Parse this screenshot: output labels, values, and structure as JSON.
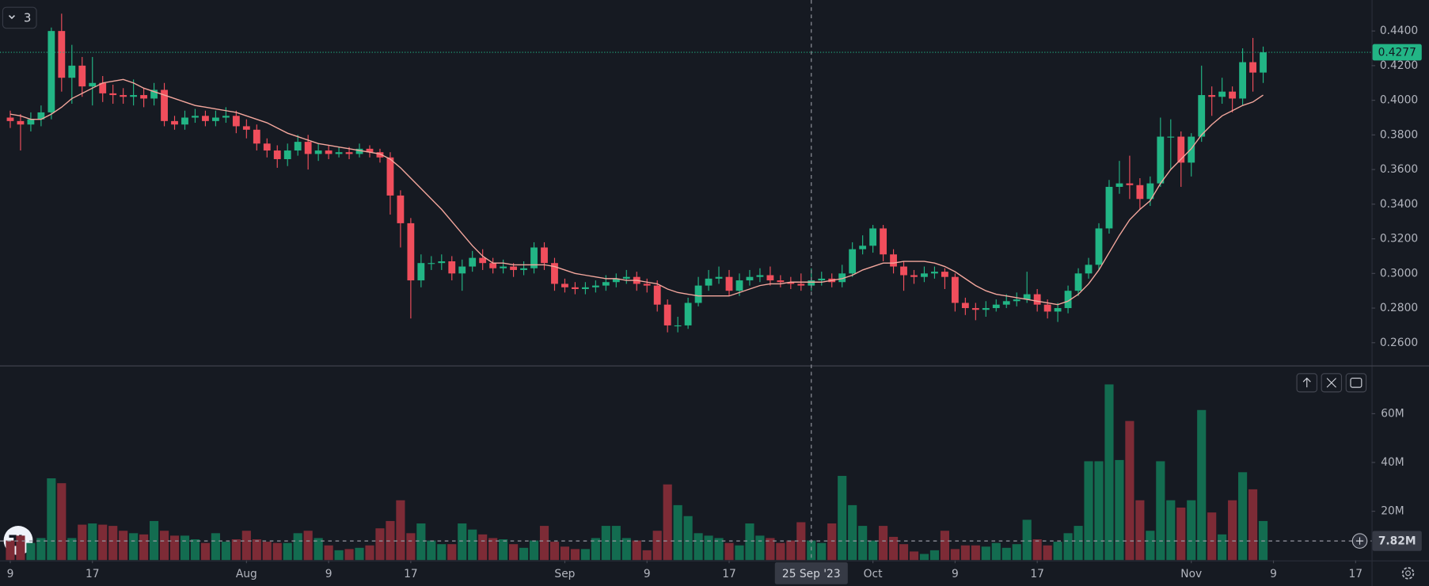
{
  "chart_data": [
    {
      "type": "candlestick",
      "x": [
        "2023-07-09",
        "2023-07-10",
        "2023-07-11",
        "2023-07-12",
        "2023-07-13",
        "2023-07-14",
        "2023-07-15",
        "2023-07-16",
        "2023-07-17",
        "2023-07-18",
        "2023-07-19",
        "2023-07-20",
        "2023-07-21",
        "2023-07-22",
        "2023-07-23",
        "2023-07-24",
        "2023-07-25",
        "2023-07-26",
        "2023-07-27",
        "2023-07-28",
        "2023-07-29",
        "2023-07-30",
        "2023-07-31",
        "2023-08-01",
        "2023-08-02",
        "2023-08-03",
        "2023-08-04",
        "2023-08-05",
        "2023-08-06",
        "2023-08-07",
        "2023-08-08",
        "2023-08-09",
        "2023-08-10",
        "2023-08-11",
        "2023-08-12",
        "2023-08-13",
        "2023-08-14",
        "2023-08-15",
        "2023-08-16",
        "2023-08-17",
        "2023-08-18",
        "2023-08-19",
        "2023-08-20",
        "2023-08-21",
        "2023-08-22",
        "2023-08-23",
        "2023-08-24",
        "2023-08-25",
        "2023-08-26",
        "2023-08-27",
        "2023-08-28",
        "2023-08-29",
        "2023-08-30",
        "2023-08-31",
        "2023-09-01",
        "2023-09-02",
        "2023-09-03",
        "2023-09-04",
        "2023-09-05",
        "2023-09-06",
        "2023-09-07",
        "2023-09-08",
        "2023-09-09",
        "2023-09-10",
        "2023-09-11",
        "2023-09-12",
        "2023-09-13",
        "2023-09-14",
        "2023-09-15",
        "2023-09-16",
        "2023-09-17",
        "2023-09-18",
        "2023-09-19",
        "2023-09-20",
        "2023-09-21",
        "2023-09-22",
        "2023-09-23",
        "2023-09-24",
        "2023-09-25",
        "2023-09-26",
        "2023-09-27",
        "2023-09-28",
        "2023-09-29",
        "2023-09-30",
        "2023-10-01",
        "2023-10-02",
        "2023-10-03",
        "2023-10-04",
        "2023-10-05",
        "2023-10-06",
        "2023-10-07",
        "2023-10-08",
        "2023-10-09",
        "2023-10-10",
        "2023-10-11",
        "2023-10-12",
        "2023-10-13",
        "2023-10-14",
        "2023-10-15",
        "2023-10-16",
        "2023-10-17",
        "2023-10-18",
        "2023-10-19",
        "2023-10-20",
        "2023-10-21",
        "2023-10-22",
        "2023-10-23",
        "2023-10-24",
        "2023-10-25",
        "2023-10-26",
        "2023-10-27",
        "2023-10-28",
        "2023-10-29",
        "2023-10-30",
        "2023-10-31",
        "2023-11-01",
        "2023-11-02",
        "2023-11-03",
        "2023-11-04",
        "2023-11-05",
        "2023-11-06",
        "2023-11-07",
        "2023-11-08"
      ],
      "open": [
        0.39,
        0.388,
        0.386,
        0.389,
        0.393,
        0.44,
        0.413,
        0.42,
        0.408,
        0.41,
        0.404,
        0.403,
        0.402,
        0.403,
        0.401,
        0.406,
        0.388,
        0.386,
        0.39,
        0.391,
        0.388,
        0.39,
        0.391,
        0.385,
        0.383,
        0.375,
        0.371,
        0.366,
        0.371,
        0.376,
        0.369,
        0.371,
        0.369,
        0.37,
        0.369,
        0.372,
        0.37,
        0.367,
        0.345,
        0.329,
        0.296,
        0.306,
        0.306,
        0.307,
        0.3,
        0.304,
        0.309,
        0.306,
        0.303,
        0.304,
        0.302,
        0.303,
        0.315,
        0.306,
        0.294,
        0.292,
        0.291,
        0.292,
        0.293,
        0.295,
        0.297,
        0.298,
        0.294,
        0.293,
        0.282,
        0.27,
        0.27,
        0.283,
        0.293,
        0.297,
        0.298,
        0.29,
        0.296,
        0.298,
        0.299,
        0.296,
        0.295,
        0.294,
        0.293,
        0.296,
        0.297,
        0.295,
        0.3,
        0.314,
        0.316,
        0.326,
        0.311,
        0.304,
        0.299,
        0.298,
        0.3,
        0.301,
        0.298,
        0.283,
        0.28,
        0.279,
        0.28,
        0.282,
        0.284,
        0.285,
        0.288,
        0.282,
        0.278,
        0.28,
        0.29,
        0.3,
        0.305,
        0.326,
        0.35,
        0.352,
        0.351,
        0.343,
        0.352,
        0.379,
        0.379,
        0.364,
        0.379,
        0.403,
        0.402,
        0.405,
        0.401,
        0.422,
        0.416
      ],
      "high": [
        0.394,
        0.392,
        0.393,
        0.397,
        0.442,
        0.45,
        0.432,
        0.425,
        0.425,
        0.414,
        0.409,
        0.407,
        0.412,
        0.407,
        0.41,
        0.41,
        0.391,
        0.394,
        0.395,
        0.394,
        0.394,
        0.396,
        0.394,
        0.389,
        0.386,
        0.378,
        0.374,
        0.375,
        0.38,
        0.38,
        0.375,
        0.374,
        0.373,
        0.373,
        0.375,
        0.374,
        0.372,
        0.37,
        0.348,
        0.332,
        0.311,
        0.31,
        0.311,
        0.31,
        0.308,
        0.313,
        0.314,
        0.309,
        0.308,
        0.306,
        0.307,
        0.318,
        0.318,
        0.309,
        0.297,
        0.295,
        0.295,
        0.296,
        0.299,
        0.3,
        0.302,
        0.301,
        0.297,
        0.296,
        0.285,
        0.275,
        0.286,
        0.298,
        0.302,
        0.304,
        0.302,
        0.3,
        0.302,
        0.303,
        0.304,
        0.299,
        0.298,
        0.3,
        0.303,
        0.301,
        0.3,
        0.305,
        0.318,
        0.322,
        0.328,
        0.328,
        0.314,
        0.307,
        0.302,
        0.304,
        0.304,
        0.303,
        0.3,
        0.286,
        0.283,
        0.284,
        0.285,
        0.288,
        0.289,
        0.301,
        0.291,
        0.285,
        0.283,
        0.293,
        0.303,
        0.309,
        0.329,
        0.354,
        0.365,
        0.368,
        0.355,
        0.356,
        0.39,
        0.389,
        0.382,
        0.381,
        0.42,
        0.408,
        0.413,
        0.408,
        0.43,
        0.436,
        0.431
      ],
      "low": [
        0.384,
        0.371,
        0.382,
        0.385,
        0.389,
        0.405,
        0.398,
        0.402,
        0.397,
        0.399,
        0.398,
        0.398,
        0.397,
        0.396,
        0.397,
        0.385,
        0.383,
        0.383,
        0.387,
        0.385,
        0.385,
        0.387,
        0.381,
        0.378,
        0.371,
        0.367,
        0.361,
        0.362,
        0.368,
        0.36,
        0.365,
        0.366,
        0.367,
        0.366,
        0.367,
        0.367,
        0.364,
        0.334,
        0.315,
        0.274,
        0.292,
        0.302,
        0.302,
        0.296,
        0.29,
        0.301,
        0.302,
        0.3,
        0.3,
        0.298,
        0.299,
        0.3,
        0.302,
        0.29,
        0.289,
        0.288,
        0.288,
        0.289,
        0.29,
        0.292,
        0.294,
        0.29,
        0.289,
        0.278,
        0.266,
        0.266,
        0.268,
        0.281,
        0.29,
        0.294,
        0.287,
        0.287,
        0.293,
        0.295,
        0.293,
        0.292,
        0.291,
        0.29,
        0.29,
        0.293,
        0.292,
        0.292,
        0.298,
        0.311,
        0.312,
        0.307,
        0.3,
        0.29,
        0.294,
        0.295,
        0.297,
        0.291,
        0.278,
        0.276,
        0.273,
        0.275,
        0.278,
        0.28,
        0.281,
        0.283,
        0.278,
        0.274,
        0.272,
        0.277,
        0.287,
        0.297,
        0.302,
        0.323,
        0.346,
        0.343,
        0.337,
        0.339,
        0.35,
        0.36,
        0.35,
        0.356,
        0.376,
        0.391,
        0.398,
        0.393,
        0.397,
        0.405,
        0.41
      ],
      "close": [
        0.388,
        0.386,
        0.389,
        0.393,
        0.44,
        0.413,
        0.42,
        0.408,
        0.41,
        0.404,
        0.403,
        0.402,
        0.403,
        0.401,
        0.406,
        0.388,
        0.386,
        0.39,
        0.391,
        0.388,
        0.39,
        0.391,
        0.385,
        0.383,
        0.375,
        0.371,
        0.366,
        0.371,
        0.376,
        0.369,
        0.371,
        0.369,
        0.37,
        0.369,
        0.372,
        0.37,
        0.367,
        0.345,
        0.329,
        0.296,
        0.306,
        0.306,
        0.307,
        0.3,
        0.304,
        0.309,
        0.306,
        0.303,
        0.304,
        0.302,
        0.303,
        0.315,
        0.306,
        0.294,
        0.292,
        0.291,
        0.292,
        0.293,
        0.295,
        0.297,
        0.298,
        0.294,
        0.293,
        0.282,
        0.27,
        0.27,
        0.283,
        0.293,
        0.297,
        0.298,
        0.29,
        0.296,
        0.298,
        0.299,
        0.296,
        0.295,
        0.294,
        0.293,
        0.296,
        0.297,
        0.295,
        0.3,
        0.314,
        0.316,
        0.326,
        0.311,
        0.304,
        0.299,
        0.298,
        0.3,
        0.301,
        0.298,
        0.283,
        0.28,
        0.279,
        0.28,
        0.282,
        0.284,
        0.285,
        0.288,
        0.282,
        0.278,
        0.28,
        0.29,
        0.3,
        0.305,
        0.326,
        0.35,
        0.352,
        0.351,
        0.343,
        0.352,
        0.379,
        0.379,
        0.364,
        0.379,
        0.403,
        0.402,
        0.405,
        0.401,
        0.422,
        0.416,
        0.4277
      ],
      "overlay": {
        "color": "#f4a79d",
        "values": [
          0.392,
          0.391,
          0.389,
          0.389,
          0.392,
          0.396,
          0.401,
          0.404,
          0.407,
          0.41,
          0.411,
          0.412,
          0.41,
          0.407,
          0.405,
          0.403,
          0.401,
          0.399,
          0.397,
          0.396,
          0.395,
          0.394,
          0.393,
          0.391,
          0.389,
          0.387,
          0.384,
          0.381,
          0.379,
          0.377,
          0.375,
          0.374,
          0.373,
          0.372,
          0.371,
          0.37,
          0.369,
          0.366,
          0.361,
          0.355,
          0.349,
          0.343,
          0.337,
          0.33,
          0.323,
          0.316,
          0.31,
          0.306,
          0.306,
          0.305,
          0.305,
          0.305,
          0.305,
          0.304,
          0.302,
          0.3,
          0.299,
          0.298,
          0.297,
          0.297,
          0.296,
          0.296,
          0.295,
          0.294,
          0.291,
          0.289,
          0.288,
          0.287,
          0.287,
          0.287,
          0.287,
          0.289,
          0.291,
          0.293,
          0.294,
          0.294,
          0.295,
          0.295,
          0.295,
          0.295,
          0.296,
          0.297,
          0.299,
          0.302,
          0.304,
          0.306,
          0.306,
          0.307,
          0.307,
          0.307,
          0.306,
          0.304,
          0.301,
          0.297,
          0.293,
          0.29,
          0.288,
          0.287,
          0.286,
          0.285,
          0.284,
          0.283,
          0.282,
          0.284,
          0.288,
          0.294,
          0.302,
          0.312,
          0.322,
          0.331,
          0.337,
          0.342,
          0.352,
          0.36,
          0.366,
          0.372,
          0.38,
          0.386,
          0.391,
          0.394,
          0.397,
          0.399,
          0.403
        ]
      },
      "up_color": "#22b585",
      "down_color": "#f04e5c",
      "xlim": [
        "2023-07-08",
        "2023-11-19"
      ],
      "xticks": [
        {
          "value": "2023-07-09",
          "label": "9"
        },
        {
          "value": "2023-07-17",
          "label": "17"
        },
        {
          "value": "2023-08-01",
          "label": "Aug"
        },
        {
          "value": "2023-08-09",
          "label": "9"
        },
        {
          "value": "2023-08-17",
          "label": "17"
        },
        {
          "value": "2023-09-01",
          "label": "Sep"
        },
        {
          "value": "2023-09-09",
          "label": "9"
        },
        {
          "value": "2023-09-17",
          "label": "17"
        },
        {
          "value": "2023-10-01",
          "label": "Oct"
        },
        {
          "value": "2023-10-09",
          "label": "9"
        },
        {
          "value": "2023-10-17",
          "label": "17"
        },
        {
          "value": "2023-11-01",
          "label": "Nov"
        },
        {
          "value": "2023-11-09",
          "label": "9"
        },
        {
          "value": "2023-11-17",
          "label": "17"
        }
      ],
      "ylim": [
        0.2474,
        0.4579
      ],
      "yticks": [
        {
          "value": 0.26,
          "label": "0.2600"
        },
        {
          "value": 0.28,
          "label": "0.2800"
        },
        {
          "value": 0.3,
          "label": "0.3000"
        },
        {
          "value": 0.32,
          "label": "0.3200"
        },
        {
          "value": 0.34,
          "label": "0.3400"
        },
        {
          "value": 0.36,
          "label": "0.3600"
        },
        {
          "value": 0.38,
          "label": "0.3800"
        },
        {
          "value": 0.4,
          "label": "0.4000"
        },
        {
          "value": 0.42,
          "label": "0.4200"
        },
        {
          "value": 0.44,
          "label": "0.4400"
        }
      ],
      "grid": false
    },
    {
      "type": "bar",
      "values": [
        8,
        10,
        7,
        9,
        33.5,
        31.5,
        9,
        14.5,
        15,
        14.5,
        14,
        12,
        11,
        10.5,
        16,
        12,
        10,
        10,
        8.5,
        7,
        11,
        7.5,
        8.5,
        12,
        8.5,
        7.5,
        7,
        7,
        11,
        12,
        9,
        6,
        4,
        4.5,
        5,
        6,
        13,
        16,
        24.5,
        11,
        15,
        8,
        6.5,
        6.5,
        15,
        12.5,
        10.5,
        9,
        8.5,
        6.5,
        5,
        8,
        14,
        7.5,
        5.5,
        4.5,
        4.5,
        9,
        14,
        14,
        9,
        8,
        4,
        12,
        31,
        22.5,
        18,
        11,
        10,
        9,
        7,
        6,
        15,
        10,
        9,
        7,
        8,
        15.5,
        8,
        7,
        15,
        34.5,
        22.5,
        14,
        8,
        14,
        9.5,
        6.5,
        3.5,
        2.5,
        4,
        12,
        4.5,
        6,
        6,
        5.5,
        7,
        5,
        6.5,
        16.5,
        8.5,
        6,
        7.5,
        11,
        14,
        40.5,
        40.5,
        72,
        41,
        57,
        24.5,
        12,
        40.5,
        24.5,
        21.5,
        24.5,
        61.5,
        19.5,
        10.5,
        24.5,
        36,
        29,
        16
      ],
      "up_color": "#136c50",
      "down_color": "#7d2b36",
      "ylim": [
        0,
        79.4
      ],
      "yticks": [
        {
          "value": 20,
          "label": "20M"
        },
        {
          "value": 40,
          "label": "40M"
        },
        {
          "value": 60,
          "label": "60M"
        }
      ],
      "grid": false
    }
  ],
  "toolbar": {
    "indicators_button": "3"
  },
  "crosshair": {
    "x": "2023-09-25",
    "x_label": "25 Sep '23",
    "y2": 7.82,
    "y2_label": "7.82M"
  }
}
